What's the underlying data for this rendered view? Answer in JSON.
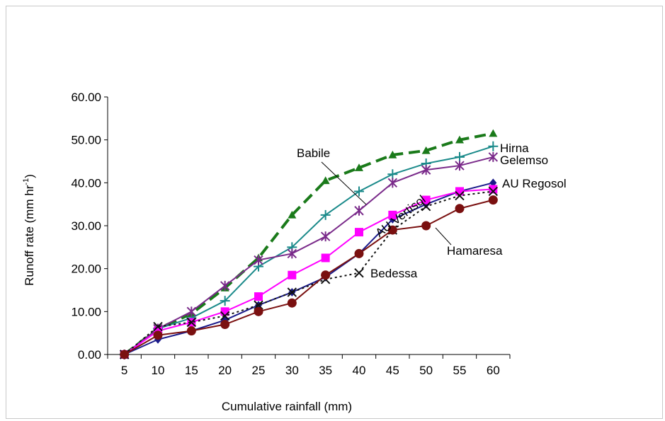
{
  "chart_data": {
    "type": "line",
    "title": "",
    "xlabel": "Cumulative rainfall (mm)",
    "ylabel": "Runoff rate (mm hr",
    "ylabel_sup": "-1",
    "ylabel_end": ")",
    "x": [
      5,
      10,
      15,
      20,
      25,
      30,
      35,
      40,
      45,
      50,
      55,
      60
    ],
    "xlim": [
      2.5,
      62.5
    ],
    "ylim": [
      0,
      60
    ],
    "yticks": [
      "0.00",
      "10.00",
      "20.00",
      "30.00",
      "40.00",
      "50.00",
      "60.00"
    ],
    "grid": false,
    "legend": "none",
    "series": [
      {
        "name": "Babile",
        "color": "#1a7a1a",
        "marker": "triangle",
        "dash": "dashed",
        "values": [
          0,
          6,
          9.5,
          15.5,
          22.5,
          32.5,
          40.5,
          43.5,
          46.5,
          47.5,
          50,
          51.5
        ]
      },
      {
        "name": "Hirna",
        "color": "#1a8a8a",
        "marker": "plus",
        "dash": "solid",
        "values": [
          0,
          6,
          8.5,
          12.5,
          20.5,
          25,
          32.5,
          38,
          42,
          44.5,
          46,
          48.5
        ]
      },
      {
        "name": "Gelemso",
        "color": "#7a2a8a",
        "marker": "star",
        "dash": "solid",
        "values": [
          0,
          6,
          10,
          16,
          22,
          23.5,
          27.5,
          33.5,
          40,
          43,
          44,
          46
        ]
      },
      {
        "name": "AU Regosol",
        "color": "#1a1a8a",
        "marker": "diamond",
        "dash": "solid",
        "values": [
          0,
          3.5,
          5.5,
          8,
          11.5,
          14.5,
          18,
          23.5,
          31.5,
          35,
          38,
          40
        ]
      },
      {
        "name": "AU Vertisol",
        "color": "#ff00ff",
        "marker": "square",
        "dash": "solid",
        "values": [
          0,
          5.5,
          7.5,
          10,
          13.5,
          18.5,
          22.5,
          28.5,
          32.5,
          36,
          38,
          38.5
        ]
      },
      {
        "name": "Bedessa",
        "color": "#111111",
        "marker": "cross",
        "dash": "dotted",
        "values": [
          0,
          6.5,
          7.5,
          9,
          11.5,
          14.5,
          17.5,
          19,
          29,
          34.5,
          37,
          38
        ]
      },
      {
        "name": "Hamaresa",
        "color": "#7a1010",
        "marker": "circle",
        "dash": "solid",
        "values": [
          0,
          4.5,
          5.5,
          7,
          10,
          12,
          18.5,
          23.5,
          29,
          30,
          34,
          36
        ]
      }
    ]
  }
}
